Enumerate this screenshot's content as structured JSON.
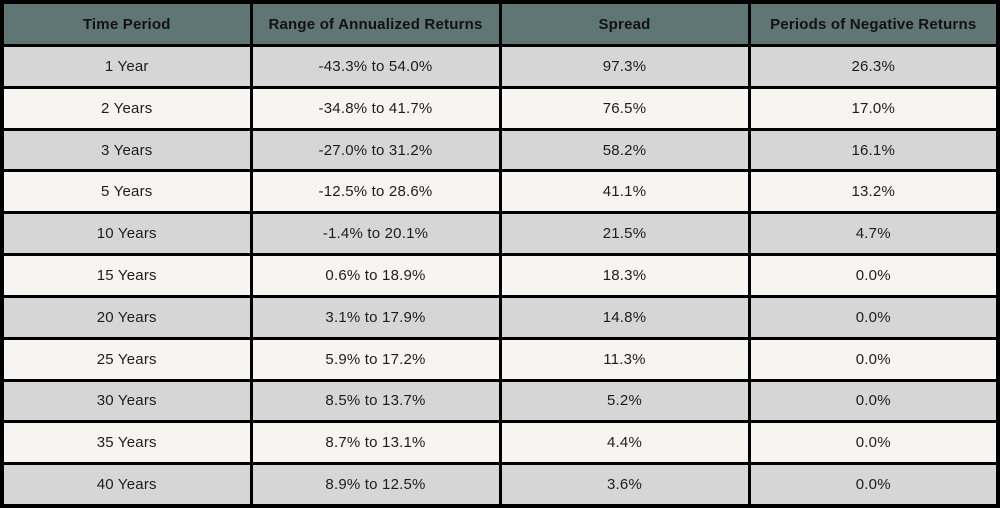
{
  "colors": {
    "header_bg": "#5f7674",
    "header_text": "#121212",
    "row_gray": "#d6d6d6",
    "row_light": "#f7f5f2",
    "body_text": "#1d1d1d",
    "negative_text": "#ef4a5e",
    "positive_text": "#5a716e",
    "border": "#000000",
    "page_bg": "#ffffff"
  },
  "chart_data": {
    "type": "table",
    "columns": [
      "Time Period",
      "Range of Annualized Returns",
      "Spread",
      "Periods of Negative Returns"
    ],
    "rows": [
      {
        "period": "1 Year",
        "range": "-43.3% to 54.0%",
        "spread": "97.3%",
        "negative_periods": "26.3%",
        "tone": "negative"
      },
      {
        "period": "2 Years",
        "range": "-34.8% to 41.7%",
        "spread": "76.5%",
        "negative_periods": "17.0%",
        "tone": "negative"
      },
      {
        "period": "3 Years",
        "range": "-27.0% to 31.2%",
        "spread": "58.2%",
        "negative_periods": "16.1%",
        "tone": "negative"
      },
      {
        "period": "5 Years",
        "range": "-12.5% to 28.6%",
        "spread": "41.1%",
        "negative_periods": "13.2%",
        "tone": "negative"
      },
      {
        "period": "10 Years",
        "range": "-1.4% to 20.1%",
        "spread": "21.5%",
        "negative_periods": "4.7%",
        "tone": "negative"
      },
      {
        "period": "15 Years",
        "range": "0.6% to 18.9%",
        "spread": "18.3%",
        "negative_periods": "0.0%",
        "tone": "positive"
      },
      {
        "period": "20 Years",
        "range": "3.1% to 17.9%",
        "spread": "14.8%",
        "negative_periods": "0.0%",
        "tone": "positive"
      },
      {
        "period": "25 Years",
        "range": "5.9% to 17.2%",
        "spread": "11.3%",
        "negative_periods": "0.0%",
        "tone": "positive"
      },
      {
        "period": "30 Years",
        "range": "8.5% to 13.7%",
        "spread": "5.2%",
        "negative_periods": "0.0%",
        "tone": "positive"
      },
      {
        "period": "35 Years",
        "range": "8.7% to 13.1%",
        "spread": "4.4%",
        "negative_periods": "0.0%",
        "tone": "positive"
      },
      {
        "period": "40 Years",
        "range": "8.9% to 12.5%",
        "spread": "3.6%",
        "negative_periods": "0.0%",
        "tone": "positive"
      }
    ]
  }
}
